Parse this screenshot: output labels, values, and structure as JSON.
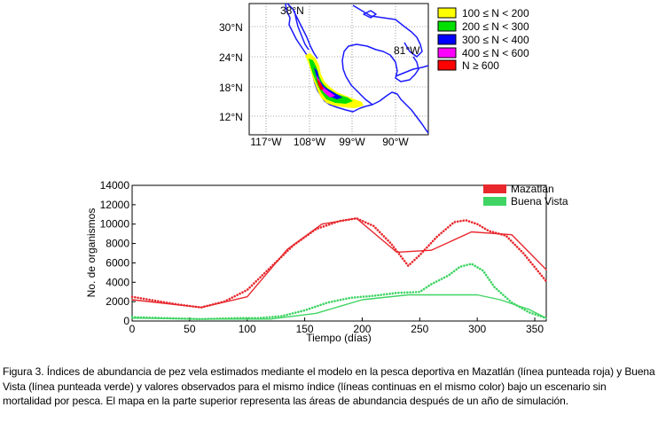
{
  "map": {
    "lat_labels": [
      "30°N",
      "24°N",
      "18°N",
      "12°N"
    ],
    "lon_labels": [
      "117°W",
      "108°W",
      "99°W",
      "90°W"
    ],
    "corner_label_lat": "38°N",
    "corner_label_lon": "81°W",
    "legend": [
      {
        "label": "100 ≤ N < 200",
        "color": "#ffff00"
      },
      {
        "label": "200 ≤ N < 300",
        "color": "#00e000"
      },
      {
        "label": "300 ≤ N < 400",
        "color": "#0000ff"
      },
      {
        "label": "400 ≤ N < 600",
        "color": "#ff00ff"
      },
      {
        "label": "N ≥ 600",
        "color": "#ff0000"
      }
    ],
    "coast_color": "#1a1aff"
  },
  "chart_data": {
    "type": "line",
    "xlabel": "Tiempo (días)",
    "ylabel": "No. de organismos",
    "xlim": [
      0,
      360
    ],
    "ylim": [
      0,
      14000
    ],
    "xticks": [
      0,
      50,
      100,
      150,
      200,
      250,
      300,
      350
    ],
    "yticks": [
      0,
      2000,
      4000,
      6000,
      8000,
      10000,
      12000,
      14000
    ],
    "series": [
      {
        "name": "Mazatlán",
        "kind": "model",
        "style": "dotted",
        "color": "#e8282d",
        "x": [
          0,
          20,
          40,
          60,
          80,
          100,
          120,
          140,
          160,
          180,
          195,
          210,
          225,
          240,
          250,
          265,
          280,
          290,
          300,
          310,
          325,
          340,
          360
        ],
        "y": [
          2500,
          2100,
          1700,
          1400,
          2000,
          3200,
          5500,
          7800,
          9500,
          10300,
          10600,
          9800,
          8000,
          5700,
          6800,
          8700,
          10200,
          10400,
          10000,
          9300,
          8800,
          7000,
          4100
        ]
      },
      {
        "name": "Mazatlán",
        "kind": "observed",
        "style": "solid",
        "color": "#e8282d",
        "x": [
          0,
          60,
          100,
          135,
          165,
          195,
          230,
          260,
          295,
          330,
          360
        ],
        "y": [
          2200,
          1400,
          2500,
          7400,
          10000,
          10600,
          7100,
          7300,
          9200,
          8900,
          5300
        ]
      },
      {
        "name": "Buena Vista",
        "kind": "model",
        "style": "dotted",
        "color": "#3fd463",
        "x": [
          0,
          30,
          60,
          90,
          110,
          130,
          150,
          170,
          190,
          210,
          230,
          250,
          260,
          275,
          285,
          295,
          305,
          315,
          330,
          345,
          360
        ],
        "y": [
          400,
          300,
          200,
          300,
          300,
          500,
          1100,
          1900,
          2400,
          2600,
          2900,
          3000,
          3800,
          4700,
          5600,
          5900,
          5200,
          3500,
          1900,
          900,
          300
        ]
      },
      {
        "name": "Buena Vista",
        "kind": "observed",
        "style": "solid",
        "color": "#3fd463",
        "x": [
          0,
          55,
          120,
          160,
          200,
          240,
          280,
          300,
          320,
          345,
          360
        ],
        "y": [
          300,
          200,
          200,
          800,
          2200,
          2700,
          2700,
          2700,
          2200,
          1200,
          300
        ]
      }
    ],
    "legend": [
      {
        "name": "Mazatlán",
        "color": "#e8282d"
      },
      {
        "name": "Buena Vista",
        "color": "#3fd463"
      }
    ]
  },
  "caption": "Figura 3. Índices de abundancia de pez vela estimados mediante el modelo en la pesca deportiva en Mazatlán (línea punteada roja) y Buena Vista (línea punteada verde) y valores observados para el mismo índice (líneas continuas en el mismo color) bajo un escenario sin mortalidad por pesca. El mapa en la parte superior representa las áreas de abundancia después de un año de simulación."
}
